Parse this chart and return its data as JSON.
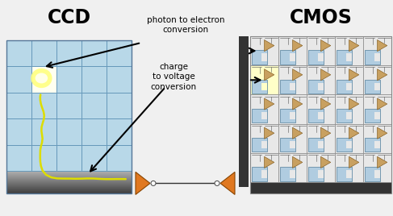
{
  "title_ccd": "CCD",
  "title_cmos": "CMOS",
  "label1": "photon to electron\nconversion",
  "label2": "charge\nto voltage\nconversion",
  "bg_color": "#f0f0f0",
  "ccd_bg": "#b8d8e8",
  "grid_line_color": "#6699bb",
  "orange_color": "#e07820",
  "yellow_path_color": "#dddd00",
  "cmos_cell_blue": "#b0cce0",
  "cmos_cell_tan": "#c8a060",
  "cmos_grid_color": "#888888",
  "dark_bar_color": "#333333",
  "cmos_bg": "#cccccc"
}
